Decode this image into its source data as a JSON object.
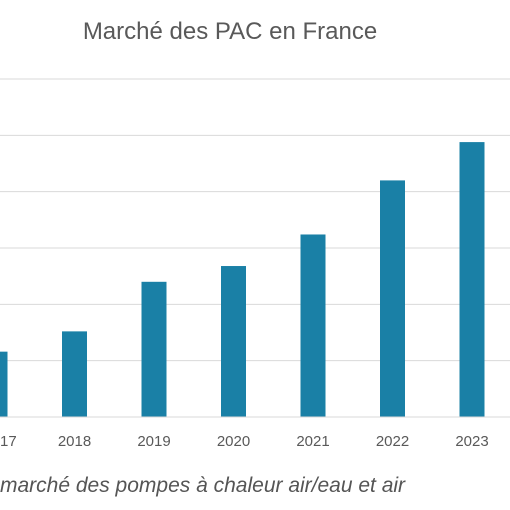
{
  "chart_data": {
    "type": "bar",
    "title": "Marché des PAC en France",
    "categories": [
      "17",
      "2018",
      "2019",
      "2020",
      "2021",
      "2022",
      "2023"
    ],
    "values": [
      14.5,
      19.0,
      30.0,
      33.5,
      40.5,
      52.5,
      61.0
    ],
    "ylim": [
      0,
      75
    ],
    "grid": true,
    "bar_color": "#1a80a6",
    "grid_color": "#d9d9d9",
    "xlabel": "",
    "ylabel": ""
  },
  "caption": "marché des pompes à chaleur air/eau et air"
}
